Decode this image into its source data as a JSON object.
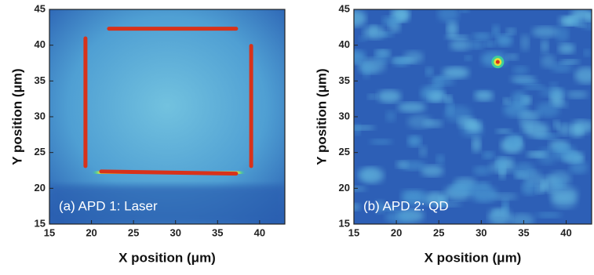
{
  "chart_data": [
    {
      "type": "heatmap",
      "xlabel": "X position (μm)",
      "ylabel": "Y position (μm)",
      "annotation": "(a) APD 1: Laser",
      "xlim": [
        15,
        43
      ],
      "ylim": [
        15,
        45
      ],
      "xticks": [
        15,
        20,
        25,
        30,
        35,
        40
      ],
      "yticks": [
        15,
        20,
        25,
        30,
        35,
        40,
        45
      ]
    },
    {
      "type": "heatmap",
      "xlabel": "X position (μm)",
      "ylabel": "Y position (μm)",
      "annotation": "(b) APD 2: QD",
      "xlim": [
        15,
        43
      ],
      "ylim": [
        15,
        45
      ],
      "xticks": [
        15,
        20,
        25,
        30,
        35,
        40
      ],
      "yticks": [
        15,
        20,
        25,
        30,
        35,
        40,
        45
      ]
    }
  ]
}
